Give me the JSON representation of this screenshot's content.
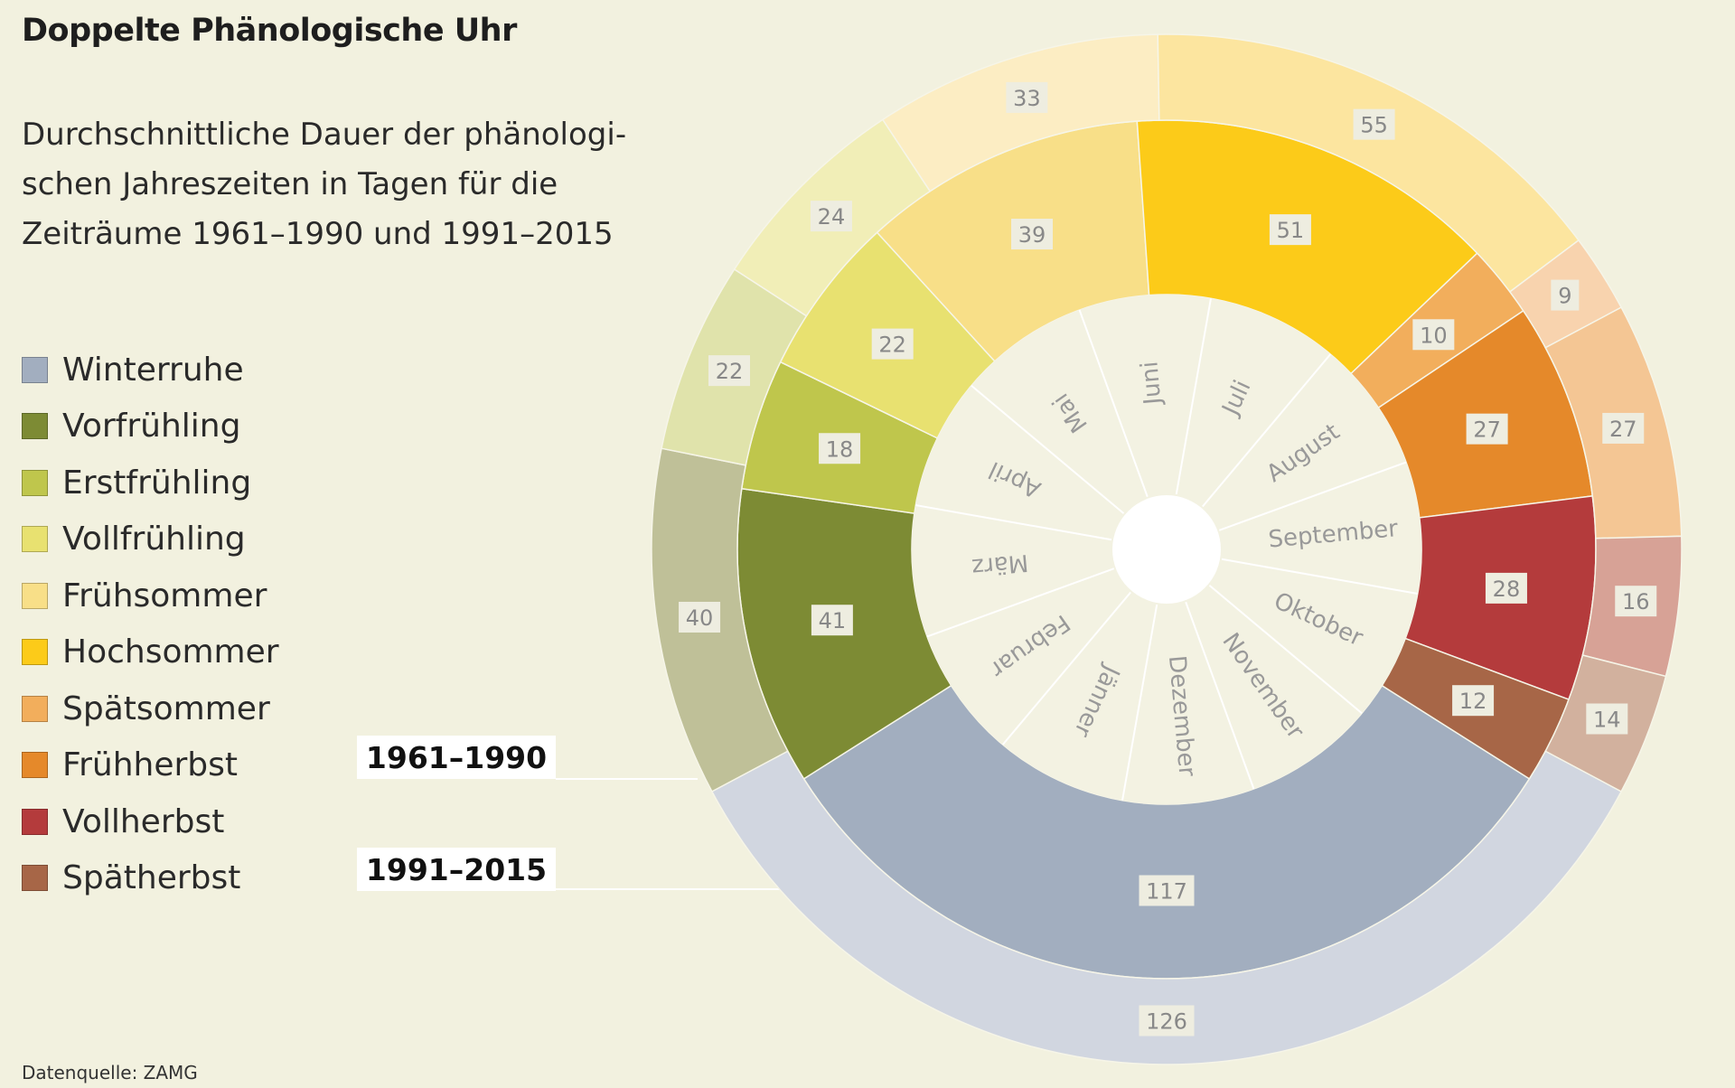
{
  "title": "Doppelte Phänologische Uhr",
  "subtitle": "Durchschnittliche Dauer der phänologi-schen Jahreszeiten in Tagen für die Zeiträume 1961–1990 und 1991–2015",
  "source": "Datenquelle: ZAMG",
  "legend": [
    {
      "label": "Winterruhe",
      "color": "#a2aebf"
    },
    {
      "label": "Vorfrühling",
      "color": "#7d8b34"
    },
    {
      "label": "Erstfrühling",
      "color": "#bfc64c"
    },
    {
      "label": "Vollfrühling",
      "color": "#e8e170"
    },
    {
      "label": "Frühsommer",
      "color": "#f8df88"
    },
    {
      "label": "Hochsommer",
      "color": "#fccb19"
    },
    {
      "label": "Spätsommer",
      "color": "#f2ae5c"
    },
    {
      "label": "Frühherbst",
      "color": "#e5892a"
    },
    {
      "label": "Vollherbst",
      "color": "#b43b3c"
    },
    {
      "label": "Spätherbst",
      "color": "#a76647"
    }
  ],
  "periods": {
    "inner": "1961–1990",
    "outer": "1991–2015"
  },
  "chart_data": {
    "type": "pie",
    "rings": [
      {
        "period": "1961–1990",
        "seasons": [
          "Winterruhe",
          "Vorfrühling",
          "Erstfrühling",
          "Vollfrühling",
          "Frühsommer",
          "Hochsommer",
          "Spätsommer",
          "Frühherbst",
          "Vollherbst",
          "Spätherbst"
        ],
        "values": [
          117,
          41,
          18,
          22,
          39,
          51,
          10,
          27,
          28,
          12
        ]
      },
      {
        "period": "1991–2015",
        "seasons": [
          "Winterruhe",
          "Vorfrühling",
          "Erstfrühling",
          "Vollfrühling",
          "Frühsommer",
          "Hochsommer",
          "Spätsommer",
          "Frühherbst",
          "Vollherbst",
          "Spätherbst"
        ],
        "values": [
          126,
          40,
          22,
          24,
          33,
          55,
          9,
          27,
          16,
          14
        ]
      }
    ],
    "months": [
      "Jänner",
      "Februar",
      "März",
      "April",
      "Mai",
      "Juni",
      "Juli",
      "August",
      "September",
      "Oktober",
      "November",
      "Dezember"
    ],
    "colors_inner": [
      "#a2aebf",
      "#7d8b34",
      "#bfc64c",
      "#e8e170",
      "#f8df88",
      "#fccb19",
      "#f2ae5c",
      "#e5892a",
      "#b43b3c",
      "#a76647"
    ],
    "colors_outer": [
      "#d1d6e0",
      "#bfc098",
      "#e0e3ab",
      "#f1eeb7",
      "#fcedc3",
      "#fce59f",
      "#f8d3ae",
      "#f4c694",
      "#d7a296",
      "#d2b19e"
    ]
  }
}
